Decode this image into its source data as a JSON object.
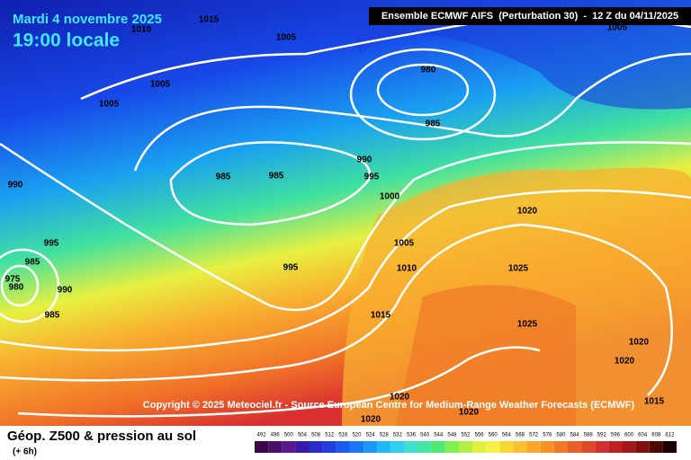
{
  "header": {
    "date": "Mardi 4 novembre 2025",
    "time": "19:00 locale",
    "model": "Ensemble ECMWF AIFS  (Perturbation 30)  -  12 Z du 04/11/2025"
  },
  "copyright": "Copyright © 2025 Meteociel.fr - Source European Centre for Medium-Range Weather Forecasts (ECMWF)",
  "isobar_labels": [
    1015,
    1010,
    1005,
    1005,
    1005,
    980,
    985,
    990,
    995,
    1000,
    985,
    985,
    990,
    995,
    985,
    975,
    980,
    990,
    985,
    1005,
    1010,
    995,
    1015,
    1020,
    1025,
    1025,
    1020,
    1020,
    1020,
    1020,
    1020,
    1005,
    1015
  ],
  "legend": {
    "title": "Géop. Z500 & pression au sol",
    "subtitle": "(+ 6h)",
    "scale": [
      492,
      496,
      500,
      504,
      508,
      512,
      516,
      520,
      524,
      528,
      532,
      536,
      540,
      544,
      548,
      552,
      556,
      560,
      564,
      568,
      572,
      576,
      580,
      584,
      588,
      592,
      596,
      600,
      604,
      608,
      612
    ],
    "colors": [
      "#3a0a4a",
      "#4b0f6b",
      "#5a1a8c",
      "#3a1aa8",
      "#2a2ac8",
      "#1f3ee0",
      "#1a5af0",
      "#1a78f5",
      "#1a98f8",
      "#20b8f8",
      "#30d0f0",
      "#40e0d0",
      "#40e8a0",
      "#50e870",
      "#80f050",
      "#b0f040",
      "#e0f040",
      "#f8f040",
      "#f8d830",
      "#f8c030",
      "#f8a828",
      "#f89028",
      "#f07828",
      "#e86028",
      "#e04828",
      "#d03030",
      "#c02020",
      "#a01818",
      "#801010",
      "#500808",
      "#200000"
    ]
  }
}
